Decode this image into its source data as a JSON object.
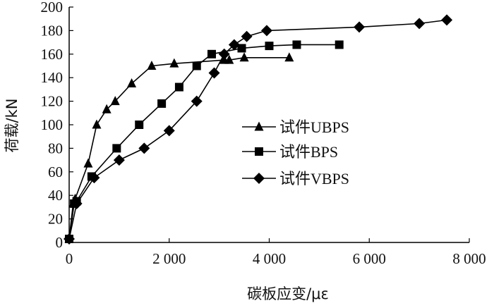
{
  "chart_data": {
    "type": "line",
    "xlabel": "碳板应变/με",
    "ylabel": "荷载/kN",
    "xlim": [
      0,
      8000
    ],
    "ylim": [
      0,
      200
    ],
    "xticks": [
      0,
      2000,
      4000,
      6000,
      8000
    ],
    "xtick_labels": [
      "0",
      "2 000",
      "4 000",
      "6 000",
      "8 000"
    ],
    "yticks": [
      0,
      20,
      40,
      60,
      80,
      100,
      120,
      140,
      160,
      180,
      200
    ],
    "ytick_labels": [
      "0",
      "20",
      "40",
      "60",
      "80",
      "100",
      "120",
      "140",
      "160",
      "180",
      "200"
    ],
    "grid": false,
    "legend_position": "center-right",
    "series": [
      {
        "name": "试件UBPS",
        "marker": "triangle",
        "color": "#000000",
        "x": [
          0,
          80,
          120,
          380,
          550,
          750,
          920,
          1250,
          1650,
          2100,
          3100,
          3200,
          3500,
          4400
        ],
        "y": [
          3,
          33,
          37,
          67,
          100,
          113,
          120,
          135,
          150,
          152,
          155,
          155,
          157,
          157
        ]
      },
      {
        "name": "试件BPS",
        "marker": "square",
        "color": "#000000",
        "x": [
          0,
          100,
          150,
          450,
          950,
          1400,
          1850,
          2200,
          2550,
          2850,
          3450,
          4000,
          4550,
          5400
        ],
        "y": [
          3,
          33,
          35,
          56,
          80,
          100,
          118,
          132,
          150,
          160,
          165,
          167,
          168,
          168
        ]
      },
      {
        "name": "试件VBPS",
        "marker": "diamond",
        "color": "#000000",
        "x": [
          0,
          150,
          500,
          1000,
          1500,
          2000,
          2550,
          2900,
          3100,
          3300,
          3550,
          3950,
          5800,
          7000,
          7550
        ],
        "y": [
          3,
          33,
          55,
          70,
          80,
          95,
          120,
          144,
          160,
          168,
          175,
          180,
          183,
          186,
          189
        ]
      }
    ]
  }
}
